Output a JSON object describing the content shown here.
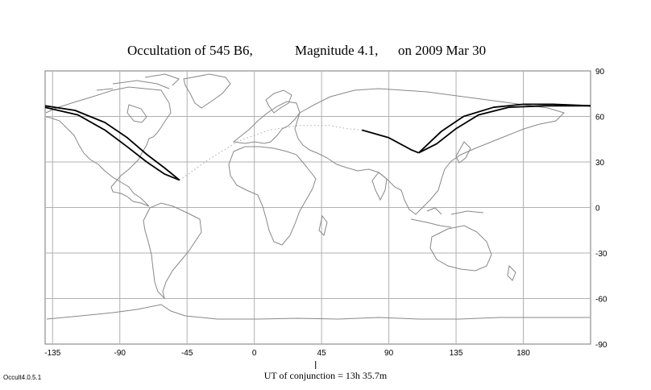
{
  "title": {
    "part1": "Occultation  of  545 B6,",
    "part2": "Magnitude 4.1,",
    "part3": "on  2009 Mar 30"
  },
  "conjunction_label": "UT of conjunction = 13h 35.7m",
  "version": "Occult4.0.5.1",
  "axes": {
    "lon_ticks": [
      "-135",
      "-90",
      "-45",
      "0",
      "45",
      "90",
      "135",
      "180"
    ],
    "lon_values": [
      -135,
      -90,
      -45,
      0,
      45,
      90,
      135,
      180
    ],
    "lat_ticks": [
      "90",
      "60",
      "30",
      "0",
      "-30",
      "-60",
      "-90"
    ],
    "lat_values": [
      90,
      60,
      30,
      0,
      -30,
      -60,
      -90
    ],
    "lon_range": [
      -140,
      225
    ],
    "lat_range": [
      -90,
      90
    ],
    "grid": true
  },
  "colors": {
    "path": "#000000",
    "coast": "#888888",
    "grid": "#b0b0b0",
    "centerline": "#aaaaaa"
  },
  "conjunction_lon": 41,
  "tracks": {
    "west_north": [
      [
        -140,
        67
      ],
      [
        -120,
        64
      ],
      [
        -100,
        56
      ],
      [
        -85,
        46
      ],
      [
        -72,
        35
      ],
      [
        -60,
        26
      ],
      [
        -50,
        18
      ]
    ],
    "west_south": [
      [
        -140,
        66
      ],
      [
        -118,
        61
      ],
      [
        -100,
        51
      ],
      [
        -85,
        40
      ],
      [
        -72,
        30
      ],
      [
        -60,
        22
      ],
      [
        -50,
        18
      ]
    ],
    "east_north": [
      [
        110,
        36
      ],
      [
        125,
        50
      ],
      [
        140,
        60
      ],
      [
        160,
        66
      ],
      [
        180,
        68
      ],
      [
        200,
        68
      ],
      [
        225,
        67
      ]
    ],
    "east_south": [
      [
        110,
        36
      ],
      [
        122,
        42
      ],
      [
        135,
        52
      ],
      [
        150,
        61
      ],
      [
        170,
        66
      ],
      [
        195,
        67
      ],
      [
        225,
        67
      ]
    ],
    "east_center": [
      [
        72,
        51
      ],
      [
        90,
        46
      ],
      [
        105,
        38
      ],
      [
        110,
        36
      ]
    ],
    "dotted_center": [
      [
        -50,
        18
      ],
      [
        -30,
        32
      ],
      [
        -10,
        44
      ],
      [
        10,
        51
      ],
      [
        30,
        54
      ],
      [
        50,
        54
      ],
      [
        62,
        52
      ],
      [
        72,
        51
      ]
    ]
  }
}
